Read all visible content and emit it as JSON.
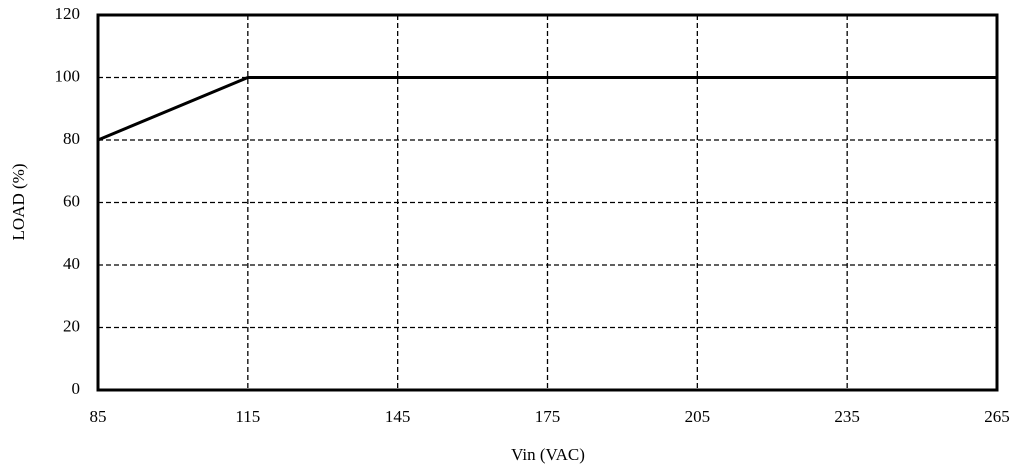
{
  "chart_data": {
    "type": "line",
    "x": [
      85,
      115,
      265
    ],
    "values": [
      80,
      100,
      100
    ],
    "color": "#000000",
    "xlabel": "Vin (VAC)",
    "ylabel": "LOAD (%)",
    "xlim": [
      85,
      265
    ],
    "xticks": [
      85,
      115,
      145,
      175,
      205,
      235,
      265
    ],
    "ylim": [
      0,
      120
    ],
    "yticks": [
      0,
      20,
      40,
      60,
      80,
      100,
      120
    ],
    "grid": true
  }
}
